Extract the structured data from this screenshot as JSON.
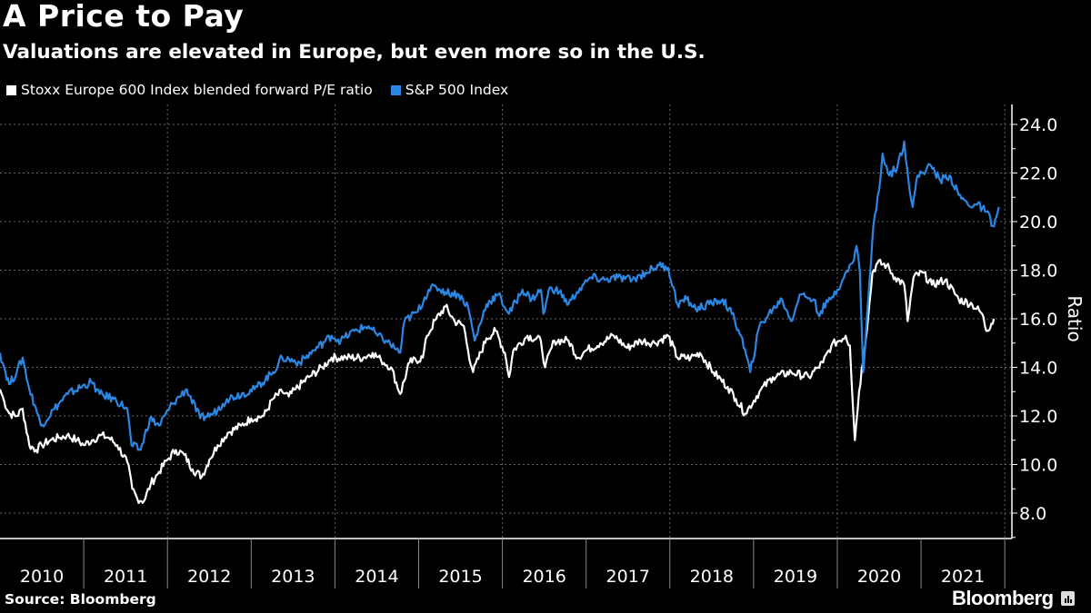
{
  "header": {
    "title": "A Price to Pay",
    "subtitle": "Valuations are elevated in Europe, but even more so in the U.S."
  },
  "footer": {
    "source": "Source: Bloomberg",
    "brand": "Bloomberg"
  },
  "chart_data": {
    "type": "line",
    "title": "A Price to Pay",
    "subtitle": "Valuations are elevated in Europe, but even more so in the U.S.",
    "xlabel": "",
    "ylabel": "Ratio",
    "ylim": [
      7,
      24.5
    ],
    "xlim": [
      2010.0,
      2022.02
    ],
    "yticks": [
      8.0,
      10.0,
      12.0,
      14.0,
      16.0,
      18.0,
      20.0,
      22.0,
      24.0
    ],
    "ytick_labels": [
      "8.0",
      "10.0",
      "12.0",
      "14.0",
      "16.0",
      "18.0",
      "20.0",
      "22.0",
      "24.0"
    ],
    "xtick_labels": [
      "2010",
      "2011",
      "2012",
      "2013",
      "2014",
      "2015",
      "2016",
      "2017",
      "2018",
      "2019",
      "2020",
      "2021"
    ],
    "grid": true,
    "legend_position": "top-left",
    "series": [
      {
        "name": "Stoxx Europe 600 Index blended forward P/E ratio",
        "color": "#ffffff",
        "points": [
          [
            2010.0,
            13.1
          ],
          [
            2010.05,
            12.6
          ],
          [
            2010.11,
            12.1
          ],
          [
            2010.2,
            12.0
          ],
          [
            2010.27,
            12.3
          ],
          [
            2010.35,
            10.8
          ],
          [
            2010.43,
            10.6
          ],
          [
            2010.5,
            10.8
          ],
          [
            2010.6,
            11.0
          ],
          [
            2010.7,
            11.1
          ],
          [
            2010.8,
            11.2
          ],
          [
            2010.92,
            11.0
          ],
          [
            2011.0,
            10.8
          ],
          [
            2011.1,
            11.0
          ],
          [
            2011.2,
            11.2
          ],
          [
            2011.3,
            11.1
          ],
          [
            2011.4,
            10.8
          ],
          [
            2011.52,
            10.1
          ],
          [
            2011.58,
            9.0
          ],
          [
            2011.64,
            8.6
          ],
          [
            2011.72,
            8.5
          ],
          [
            2011.8,
            9.2
          ],
          [
            2011.9,
            9.7
          ],
          [
            2012.0,
            10.2
          ],
          [
            2012.1,
            10.6
          ],
          [
            2012.2,
            10.4
          ],
          [
            2012.3,
            9.8
          ],
          [
            2012.41,
            9.5
          ],
          [
            2012.5,
            10.2
          ],
          [
            2012.6,
            10.8
          ],
          [
            2012.72,
            11.3
          ],
          [
            2012.88,
            11.6
          ],
          [
            2013.0,
            11.9
          ],
          [
            2013.15,
            12.0
          ],
          [
            2013.26,
            12.7
          ],
          [
            2013.37,
            13.0
          ],
          [
            2013.45,
            12.8
          ],
          [
            2013.53,
            13.1
          ],
          [
            2013.69,
            13.6
          ],
          [
            2013.85,
            14.0
          ],
          [
            2013.96,
            14.4
          ],
          [
            2014.13,
            14.4
          ],
          [
            2014.34,
            14.4
          ],
          [
            2014.45,
            14.6
          ],
          [
            2014.55,
            14.3
          ],
          [
            2014.67,
            14.0
          ],
          [
            2014.78,
            12.9
          ],
          [
            2014.89,
            14.2
          ],
          [
            2015.05,
            14.4
          ],
          [
            2015.1,
            15.3
          ],
          [
            2015.21,
            16.0
          ],
          [
            2015.32,
            16.5
          ],
          [
            2015.43,
            15.9
          ],
          [
            2015.54,
            15.7
          ],
          [
            2015.59,
            14.7
          ],
          [
            2015.65,
            13.8
          ],
          [
            2015.81,
            15.2
          ],
          [
            2015.92,
            15.5
          ],
          [
            2016.03,
            14.6
          ],
          [
            2016.08,
            13.6
          ],
          [
            2016.13,
            14.7
          ],
          [
            2016.3,
            15.3
          ],
          [
            2016.46,
            15.1
          ],
          [
            2016.51,
            14.0
          ],
          [
            2016.62,
            15.1
          ],
          [
            2016.79,
            15.1
          ],
          [
            2016.9,
            14.4
          ],
          [
            2017.0,
            14.7
          ],
          [
            2017.17,
            15.0
          ],
          [
            2017.33,
            15.3
          ],
          [
            2017.49,
            14.8
          ],
          [
            2017.65,
            15.1
          ],
          [
            2017.82,
            15.0
          ],
          [
            2017.98,
            15.3
          ],
          [
            2018.09,
            14.4
          ],
          [
            2018.25,
            14.4
          ],
          [
            2018.36,
            14.6
          ],
          [
            2018.52,
            13.8
          ],
          [
            2018.69,
            13.2
          ],
          [
            2018.79,
            12.7
          ],
          [
            2018.9,
            12.1
          ],
          [
            2019.07,
            13.0
          ],
          [
            2019.23,
            13.6
          ],
          [
            2019.45,
            13.8
          ],
          [
            2019.66,
            13.6
          ],
          [
            2019.77,
            14.0
          ],
          [
            2019.83,
            14.2
          ],
          [
            2019.93,
            14.9
          ],
          [
            2020.1,
            15.3
          ],
          [
            2020.15,
            14.9
          ],
          [
            2020.21,
            11.0
          ],
          [
            2020.26,
            13.0
          ],
          [
            2020.37,
            16.1
          ],
          [
            2020.42,
            17.9
          ],
          [
            2020.48,
            18.3
          ],
          [
            2020.59,
            18.2
          ],
          [
            2020.69,
            17.7
          ],
          [
            2020.8,
            17.4
          ],
          [
            2020.84,
            15.9
          ],
          [
            2020.91,
            17.7
          ],
          [
            2021.02,
            17.9
          ],
          [
            2021.13,
            17.4
          ],
          [
            2021.29,
            17.6
          ],
          [
            2021.45,
            16.8
          ],
          [
            2021.61,
            16.6
          ],
          [
            2021.73,
            16.2
          ],
          [
            2021.78,
            15.5
          ],
          [
            2021.84,
            15.8
          ],
          [
            2021.87,
            16.0
          ]
        ]
      },
      {
        "name": "S&P 500 Index",
        "color": "#2b87e3",
        "points": [
          [
            2010.0,
            14.6
          ],
          [
            2010.05,
            14.0
          ],
          [
            2010.11,
            13.3
          ],
          [
            2010.2,
            13.8
          ],
          [
            2010.27,
            14.4
          ],
          [
            2010.35,
            13.1
          ],
          [
            2010.43,
            12.3
          ],
          [
            2010.49,
            11.6
          ],
          [
            2010.65,
            12.3
          ],
          [
            2010.81,
            12.9
          ],
          [
            2011.09,
            13.4
          ],
          [
            2011.19,
            12.9
          ],
          [
            2011.36,
            12.7
          ],
          [
            2011.52,
            12.3
          ],
          [
            2011.57,
            10.8
          ],
          [
            2011.68,
            10.6
          ],
          [
            2011.79,
            11.9
          ],
          [
            2011.9,
            11.6
          ],
          [
            2012.06,
            12.5
          ],
          [
            2012.23,
            13.1
          ],
          [
            2012.39,
            11.9
          ],
          [
            2012.55,
            12.1
          ],
          [
            2012.66,
            12.5
          ],
          [
            2012.71,
            12.7
          ],
          [
            2013.04,
            13.1
          ],
          [
            2013.26,
            13.8
          ],
          [
            2013.37,
            14.4
          ],
          [
            2013.58,
            14.2
          ],
          [
            2013.75,
            14.7
          ],
          [
            2013.96,
            15.3
          ],
          [
            2014.07,
            15.1
          ],
          [
            2014.23,
            15.5
          ],
          [
            2014.4,
            15.7
          ],
          [
            2014.51,
            15.3
          ],
          [
            2014.61,
            15.1
          ],
          [
            2014.78,
            14.6
          ],
          [
            2014.83,
            15.9
          ],
          [
            2014.99,
            16.3
          ],
          [
            2015.12,
            17.2
          ],
          [
            2015.21,
            17.3
          ],
          [
            2015.32,
            17.1
          ],
          [
            2015.48,
            17.0
          ],
          [
            2015.59,
            16.5
          ],
          [
            2015.67,
            15.1
          ],
          [
            2015.81,
            16.6
          ],
          [
            2015.95,
            17.0
          ],
          [
            2016.08,
            16.2
          ],
          [
            2016.24,
            17.2
          ],
          [
            2016.35,
            16.8
          ],
          [
            2016.46,
            17.2
          ],
          [
            2016.49,
            16.2
          ],
          [
            2016.57,
            17.3
          ],
          [
            2016.68,
            17.1
          ],
          [
            2016.79,
            16.6
          ],
          [
            2016.89,
            17.1
          ],
          [
            2017.06,
            17.7
          ],
          [
            2017.22,
            17.6
          ],
          [
            2017.38,
            17.7
          ],
          [
            2017.55,
            17.6
          ],
          [
            2017.71,
            17.9
          ],
          [
            2017.87,
            18.2
          ],
          [
            2017.98,
            18.1
          ],
          [
            2018.09,
            16.6
          ],
          [
            2018.2,
            16.8
          ],
          [
            2018.31,
            16.4
          ],
          [
            2018.47,
            16.6
          ],
          [
            2018.63,
            16.8
          ],
          [
            2018.74,
            16.2
          ],
          [
            2018.85,
            15.3
          ],
          [
            2018.96,
            13.8
          ],
          [
            2019.07,
            15.7
          ],
          [
            2019.23,
            16.4
          ],
          [
            2019.34,
            16.8
          ],
          [
            2019.45,
            15.9
          ],
          [
            2019.55,
            17.0
          ],
          [
            2019.72,
            16.8
          ],
          [
            2019.77,
            16.2
          ],
          [
            2019.92,
            16.8
          ],
          [
            2020.08,
            17.7
          ],
          [
            2020.18,
            18.3
          ],
          [
            2020.23,
            19.0
          ],
          [
            2020.27,
            17.9
          ],
          [
            2020.31,
            13.8
          ],
          [
            2020.37,
            16.8
          ],
          [
            2020.43,
            19.8
          ],
          [
            2020.5,
            21.3
          ],
          [
            2020.54,
            22.8
          ],
          [
            2020.62,
            21.9
          ],
          [
            2020.72,
            22.3
          ],
          [
            2020.8,
            23.3
          ],
          [
            2020.85,
            21.7
          ],
          [
            2020.9,
            20.6
          ],
          [
            2020.96,
            21.9
          ],
          [
            2021.12,
            22.3
          ],
          [
            2021.23,
            21.7
          ],
          [
            2021.34,
            21.9
          ],
          [
            2021.45,
            21.1
          ],
          [
            2021.56,
            20.7
          ],
          [
            2021.67,
            20.7
          ],
          [
            2021.78,
            20.4
          ],
          [
            2021.87,
            19.8
          ],
          [
            2021.93,
            20.6
          ]
        ]
      }
    ]
  }
}
